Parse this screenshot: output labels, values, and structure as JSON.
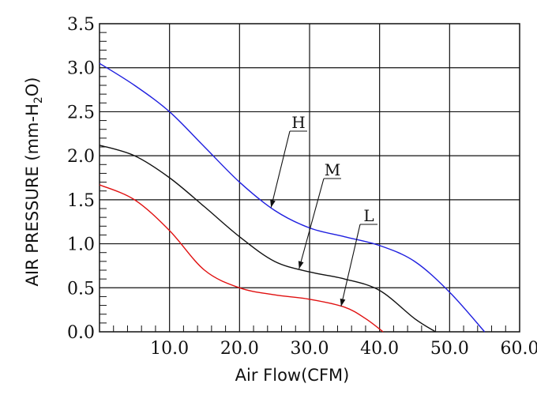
{
  "chart_data": {
    "type": "line",
    "xlabel": "Air Flow(CFM)",
    "ylabel": "AIR PRESSURE (mm-H",
    "ylabel_sub": "2",
    "ylabel_tail": "O)",
    "xlim": [
      0,
      60
    ],
    "ylim": [
      0,
      3.5
    ],
    "x_tick_labels": [
      "10.0",
      "20.0",
      "30.0",
      "40.0",
      "50.0",
      "60.0"
    ],
    "y_tick_labels": [
      "0.0",
      "0.5",
      "1.0",
      "1.5",
      "2.0",
      "2.5",
      "3.0",
      "3.5"
    ],
    "grid": true,
    "series": [
      {
        "name": "H",
        "color": "#1f1fdf",
        "x": [
          0,
          5,
          10,
          15,
          20,
          25,
          30,
          35,
          40,
          45,
          50,
          55
        ],
        "y": [
          3.05,
          2.8,
          2.5,
          2.1,
          1.7,
          1.38,
          1.18,
          1.08,
          0.98,
          0.8,
          0.45,
          0
        ]
      },
      {
        "name": "M",
        "color": "#111111",
        "x": [
          0,
          5,
          10,
          15,
          20,
          25,
          30,
          35,
          40,
          45,
          48
        ],
        "y": [
          2.12,
          2.0,
          1.75,
          1.42,
          1.08,
          0.8,
          0.68,
          0.6,
          0.47,
          0.15,
          0
        ]
      },
      {
        "name": "L",
        "color": "#e01010",
        "x": [
          0,
          5,
          10,
          15,
          20,
          25,
          30,
          35,
          38,
          40.5
        ],
        "y": [
          1.67,
          1.5,
          1.15,
          0.7,
          0.5,
          0.42,
          0.37,
          0.28,
          0.15,
          0
        ]
      }
    ]
  }
}
